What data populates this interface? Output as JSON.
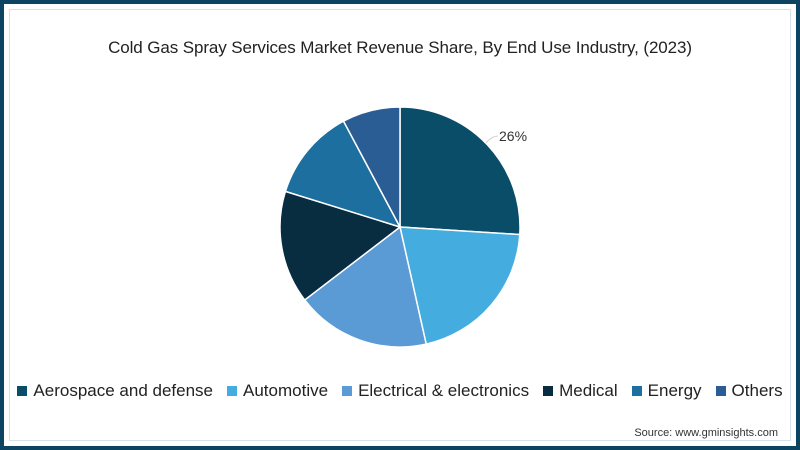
{
  "title": "Cold Gas Spray Services Market Revenue Share, By End Use Industry, (2023)",
  "source": "Source: www.gminsights.com",
  "frame_color": "#0d4461",
  "chart_data": {
    "type": "pie",
    "title": "Cold Gas Spray Services Market Revenue Share, By End Use Industry, (2023)",
    "categories": [
      "Aerospace and defense",
      "Automotive",
      "Electrical & electronics",
      "Medical",
      "Energy",
      "Others"
    ],
    "values": [
      26,
      20.5,
      18.1,
      15.2,
      12.4,
      7.8
    ],
    "colors": [
      "#0a4d68",
      "#45ace0",
      "#5b9bd5",
      "#082c40",
      "#1d6fa0",
      "#2a5d94"
    ],
    "data_labels": [
      {
        "category": "Aerospace and defense",
        "text": "26%"
      }
    ],
    "start_angle": 0,
    "direction": "clockwise",
    "legend_position": "bottom",
    "unit": "%"
  },
  "labels": {
    "aerospace_pct": "26%"
  },
  "legend": [
    {
      "label": "Aerospace and defense",
      "color": "#0a4d68"
    },
    {
      "label": "Automotive",
      "color": "#45ace0"
    },
    {
      "label": "Electrical & electronics",
      "color": "#5b9bd5"
    },
    {
      "label": "Medical",
      "color": "#082c40"
    },
    {
      "label": "Energy",
      "color": "#1d6fa0"
    },
    {
      "label": "Others",
      "color": "#2a5d94"
    }
  ]
}
